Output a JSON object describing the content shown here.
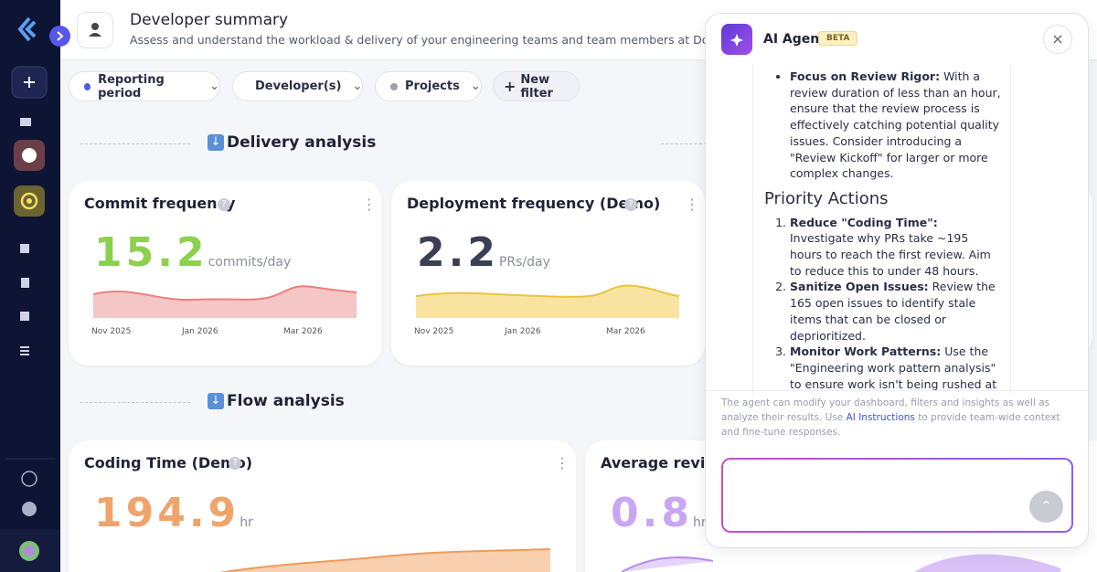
{
  "header": {
    "title": "Developer summary",
    "subtitle": "Assess and understand the workload & delivery of your engineering teams and team members at DoeCorp"
  },
  "filters": [
    "Reporting period",
    "Developer(s)",
    "Projects",
    "New filter"
  ],
  "sections": [
    {
      "title": "Delivery analysis",
      "cards": [
        {
          "title": "Commit frequency",
          "value": 15.2,
          "unit": "commits/day",
          "x_labels": [
            "Nov 2025",
            "Jan 2026",
            "Mar 2026"
          ]
        },
        {
          "title": "Deployment frequency (Demo)",
          "value": 2.2,
          "unit": "PRs/day",
          "x_labels": [
            "Nov 2025",
            "Jan 2026",
            "Mar 2026"
          ]
        }
      ]
    },
    {
      "title": "Flow analysis",
      "cards": [
        {
          "title": "Coding Time (Demo)",
          "value": 194.9,
          "unit": "hr"
        },
        {
          "title": "Average review",
          "value": 0.8,
          "unit": "hr"
        }
      ]
    }
  ],
  "agent": {
    "title": "AI Agent",
    "badge": "BETA",
    "bullets": [
      {
        "label": "Focus on Review Rigor:",
        "text": "With a review duration of less than an hour, ensure that the review process is effectively catching potential quality issues. Consider introducing a \"Review Kickoff\" for larger or more complex changes."
      }
    ],
    "heading": "Priority Actions",
    "actions": [
      {
        "label": "Reduce \"Coding Time\":",
        "text": "Investigate why PRs take ~195 hours to reach the first review. Aim to reduce this to under 48 hours."
      },
      {
        "label": "Sanitize Open Issues:",
        "text": "Review the 165 open issues to identify stale items that can be closed or deprioritized."
      },
      {
        "label": "Monitor Work Patterns:",
        "text": "Use the \"Engineering work pattern analysis\" to ensure work isn't being rushed at the end of the week, which can lead to quality degradation."
      }
    ],
    "footer": {
      "before": "The agent can modify your dashboard, filters and insights as well as analyze their results. Use",
      "link": "AI Instructions",
      "after": "to provide team-wide context and fine-tune responses."
    }
  }
}
